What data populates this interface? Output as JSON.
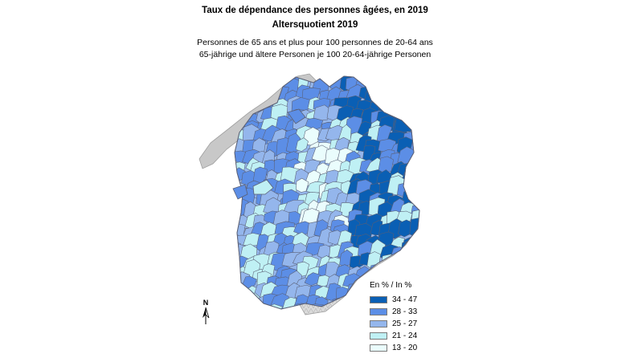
{
  "title_fr": "Taux de dépendance des personnes âgées, en 2019",
  "title_de": "Altersquotient 2019",
  "subtitle_fr": "Personnes de 65 ans et plus pour 100 personnes de 20-64 ans",
  "subtitle_de": "65-jährige und ältere Personen je 100 20-64-jährige Personen",
  "legend": {
    "title": "En % / In %",
    "classes": [
      {
        "label": "34 - 47",
        "color": "#0a5fb4"
      },
      {
        "label": "28 - 33",
        "color": "#5c8ee6"
      },
      {
        "label": "25 - 27",
        "color": "#94b6ec"
      },
      {
        "label": "21 - 24",
        "color": "#bff0f4"
      },
      {
        "label": "13 - 20",
        "color": "#eafdfd"
      }
    ]
  },
  "north_arrow": {
    "label": "N"
  },
  "colors": {
    "lake": "#c8c8c8",
    "mountain_relief": "#dcdcdc",
    "boundary": "#5a5f74"
  }
}
